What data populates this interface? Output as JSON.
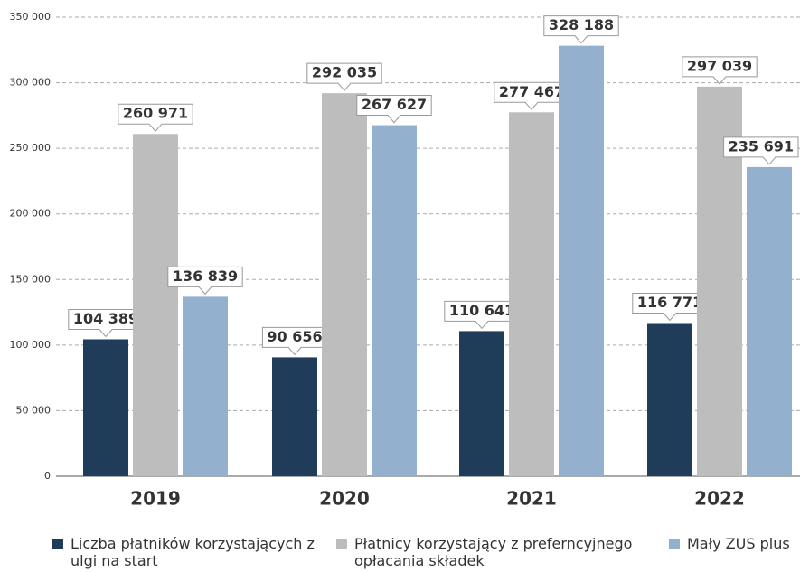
{
  "chart_data": {
    "type": "bar",
    "categories": [
      "2019",
      "2020",
      "2021",
      "2022"
    ],
    "series": [
      {
        "name": "Liczba płatników korzystających z ulgi na start",
        "color": "#1f3d58",
        "values": [
          104389,
          90656,
          110641,
          116771
        ],
        "value_labels": [
          "104 389",
          "90 656",
          "110 641",
          "116 771"
        ]
      },
      {
        "name": "Płatnicy korzystający z preferncyjnego opłacania składek",
        "color": "#bdbdbd",
        "values": [
          260971,
          292035,
          277467,
          297039
        ],
        "value_labels": [
          "260 971",
          "292 035",
          "277 467",
          "297 039"
        ]
      },
      {
        "name": "Mały ZUS plus",
        "color": "#93b1cf",
        "values": [
          136839,
          267627,
          328188,
          235691
        ],
        "value_labels": [
          "136 839",
          "267 627",
          "328 188",
          "235 691"
        ]
      }
    ],
    "ylim": [
      0,
      350000
    ],
    "yticks": [
      0,
      {
        "value": 50000,
        "label": "50 000"
      },
      {
        "value": 100000,
        "label": "100 000"
      },
      {
        "value": 150000,
        "label": "150 000"
      },
      {
        "value": 200000,
        "label": "200 000"
      },
      {
        "value": 250000,
        "label": "250 000"
      },
      {
        "value": 300000,
        "label": "300 000"
      },
      {
        "value": 350000,
        "label": "350 000"
      }
    ],
    "grid": true
  }
}
